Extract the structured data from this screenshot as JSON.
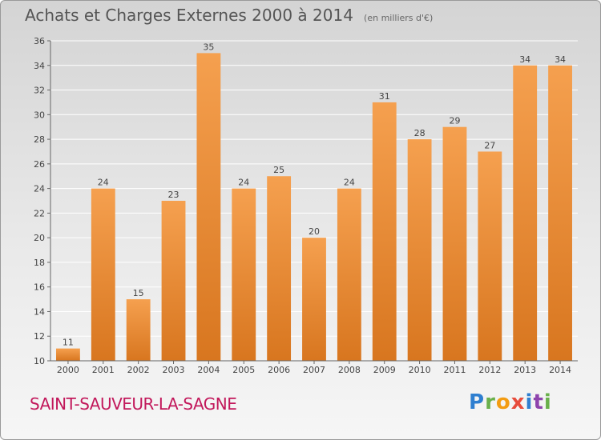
{
  "header": {
    "title": "Achats et Charges Externes 2000 à 2014",
    "subtitle": "(en milliers d'€)"
  },
  "footer": {
    "commune": "SAINT-SAUVEUR-LA-SAGNE",
    "logo": "Proxiti"
  },
  "colors": {
    "bar_light": "#f5a04f",
    "bar_dark": "#d8761f",
    "commune_text": "#c2185b"
  },
  "chart_data": {
    "type": "bar",
    "title": "Achats et Charges Externes 2000 à 2014",
    "subtitle": "(en milliers d'€)",
    "xlabel": "",
    "ylabel": "",
    "ylim": [
      10,
      36
    ],
    "yticks": [
      10,
      12,
      14,
      16,
      18,
      20,
      22,
      24,
      26,
      28,
      30,
      32,
      34,
      36
    ],
    "categories": [
      "2000",
      "2001",
      "2002",
      "2003",
      "2004",
      "2005",
      "2006",
      "2007",
      "2008",
      "2009",
      "2010",
      "2011",
      "2012",
      "2013",
      "2014"
    ],
    "values": [
      11,
      24,
      15,
      23,
      35,
      24,
      25,
      20,
      24,
      31,
      28,
      29,
      27,
      34,
      34
    ],
    "grid": true,
    "legend": "none"
  }
}
